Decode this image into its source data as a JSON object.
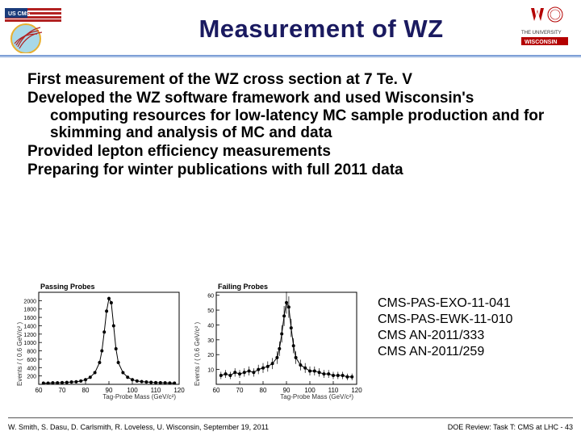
{
  "header": {
    "title": "Measurement of WZ"
  },
  "bullets": {
    "b1": "First measurement of the WZ cross section at 7 Te. V",
    "b2": "Developed the WZ software framework and used Wisconsin's computing resources for low-latency MC sample production and for skimming and analysis of MC and data",
    "b3": "Provided lepton efficiency measurements",
    "b4": "Preparing for winter publications with full 2011 data"
  },
  "references": {
    "r1": "CMS-PAS-EXO-11-041",
    "r2": "CMS-PAS-EWK-11-010",
    "r3": "CMS AN-2011/333",
    "r4": "CMS AN-2011/259"
  },
  "footer": {
    "left": "W. Smith, S. Dasu, D. Carlsmith, R. Loveless, U. Wisconsin, September 19, 2011",
    "right": "DOE Review: Task T: CMS at LHC -  43"
  },
  "chart_left": {
    "type": "scatter-line",
    "title": "Passing Probes",
    "ylabel": "Events / ( 0.6 GeV/c² )",
    "xlabel": "Tag-Probe Mass (GeV/c²)",
    "xlim": [
      60,
      120
    ],
    "ylim": [
      0,
      2200
    ],
    "xtick_step": 10,
    "ytick_labels": [
      "200",
      "400",
      "600",
      "800",
      "1000",
      "1200",
      "1400",
      "1600",
      "1800",
      "2000"
    ],
    "grid_color": "#e6e6e6",
    "background_color": "#ffffff",
    "marker_color": "#000000",
    "marker_size": 2,
    "line_color": "#000000",
    "points_x": [
      62,
      64,
      66,
      68,
      70,
      72,
      74,
      76,
      78,
      80,
      82,
      84,
      86,
      87,
      88,
      89,
      90,
      91,
      92,
      93,
      94,
      96,
      98,
      100,
      102,
      104,
      106,
      108,
      110,
      112,
      114,
      116,
      118
    ],
    "points_y": [
      30,
      30,
      35,
      35,
      40,
      45,
      55,
      60,
      80,
      110,
      170,
      280,
      520,
      800,
      1250,
      1750,
      2050,
      1950,
      1400,
      850,
      520,
      280,
      170,
      110,
      80,
      65,
      55,
      48,
      42,
      38,
      35,
      32,
      30
    ]
  },
  "chart_right": {
    "type": "scatter-line",
    "title": "Failing Probes",
    "ylabel": "Events / ( 0.6 GeV/c² )",
    "xlabel": "Tag-Probe Mass (GeV/c²)",
    "xlim": [
      60,
      120
    ],
    "ylim": [
      0,
      62
    ],
    "xtick_step": 10,
    "ytick_labels": [
      "10",
      "20",
      "30",
      "40",
      "50",
      "60"
    ],
    "grid_color": "#e6e6e6",
    "background_color": "#ffffff",
    "marker_color": "#000000",
    "marker_size": 2,
    "line_color": "#000000",
    "points_x": [
      62,
      64,
      66,
      68,
      70,
      72,
      74,
      76,
      78,
      80,
      82,
      84,
      86,
      87,
      88,
      89,
      90,
      91,
      92,
      93,
      94,
      96,
      98,
      100,
      102,
      104,
      106,
      108,
      110,
      112,
      114,
      116,
      118
    ],
    "points_y": [
      6,
      7,
      6,
      8,
      7,
      8,
      9,
      8,
      10,
      11,
      12,
      14,
      18,
      24,
      34,
      46,
      55,
      52,
      38,
      26,
      18,
      13,
      11,
      9,
      9,
      8,
      7,
      7,
      6,
      6,
      6,
      5,
      5
    ]
  }
}
